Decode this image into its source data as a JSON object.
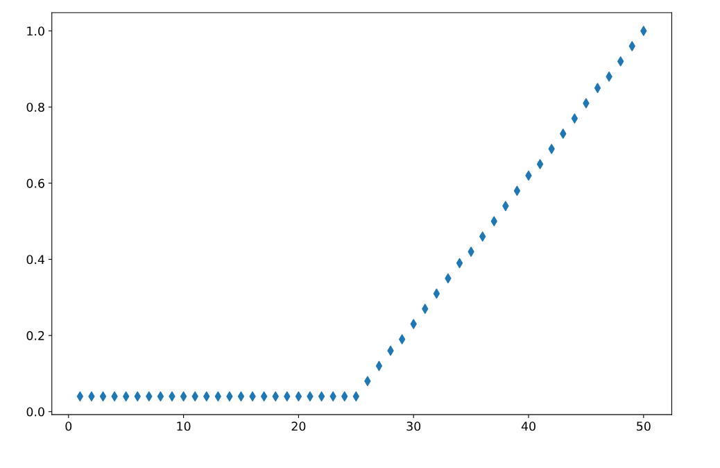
{
  "chart_data": {
    "type": "scatter",
    "x": [
      1,
      2,
      3,
      4,
      5,
      6,
      7,
      8,
      9,
      10,
      11,
      12,
      13,
      14,
      15,
      16,
      17,
      18,
      19,
      20,
      21,
      22,
      23,
      24,
      25,
      26,
      27,
      28,
      29,
      30,
      31,
      32,
      33,
      34,
      35,
      36,
      37,
      38,
      39,
      40,
      41,
      42,
      43,
      44,
      45,
      46,
      47,
      48,
      49,
      50
    ],
    "series": [
      {
        "color": "#1f77b4",
        "values": [
          0.04,
          0.04,
          0.04,
          0.04,
          0.04,
          0.04,
          0.04,
          0.04,
          0.04,
          0.04,
          0.04,
          0.04,
          0.04,
          0.04,
          0.04,
          0.04,
          0.04,
          0.04,
          0.04,
          0.04,
          0.04,
          0.04,
          0.04,
          0.04,
          0.04,
          0.08,
          0.12,
          0.16,
          0.19,
          0.23,
          0.27,
          0.31,
          0.35,
          0.39,
          0.42,
          0.46,
          0.5,
          0.54,
          0.58,
          0.62,
          0.65,
          0.69,
          0.73,
          0.77,
          0.81,
          0.85,
          0.88,
          0.92,
          0.96,
          1.0
        ]
      }
    ],
    "marker": "diamond",
    "xlim": [
      -1.45,
      52.45
    ],
    "ylim": [
      -0.008,
      1.048
    ],
    "xticks": [
      0,
      10,
      20,
      30,
      40,
      50
    ],
    "yticks": [
      {
        "value": 0,
        "label": "0.0"
      },
      {
        "value": 0.2,
        "label": "0.2"
      },
      {
        "value": 0.4,
        "label": "0.4"
      },
      {
        "value": 0.6,
        "label": "0.6"
      },
      {
        "value": 0.8,
        "label": "0.8"
      },
      {
        "value": 1.0,
        "label": "1.0"
      }
    ],
    "grid": false,
    "legend": false
  }
}
